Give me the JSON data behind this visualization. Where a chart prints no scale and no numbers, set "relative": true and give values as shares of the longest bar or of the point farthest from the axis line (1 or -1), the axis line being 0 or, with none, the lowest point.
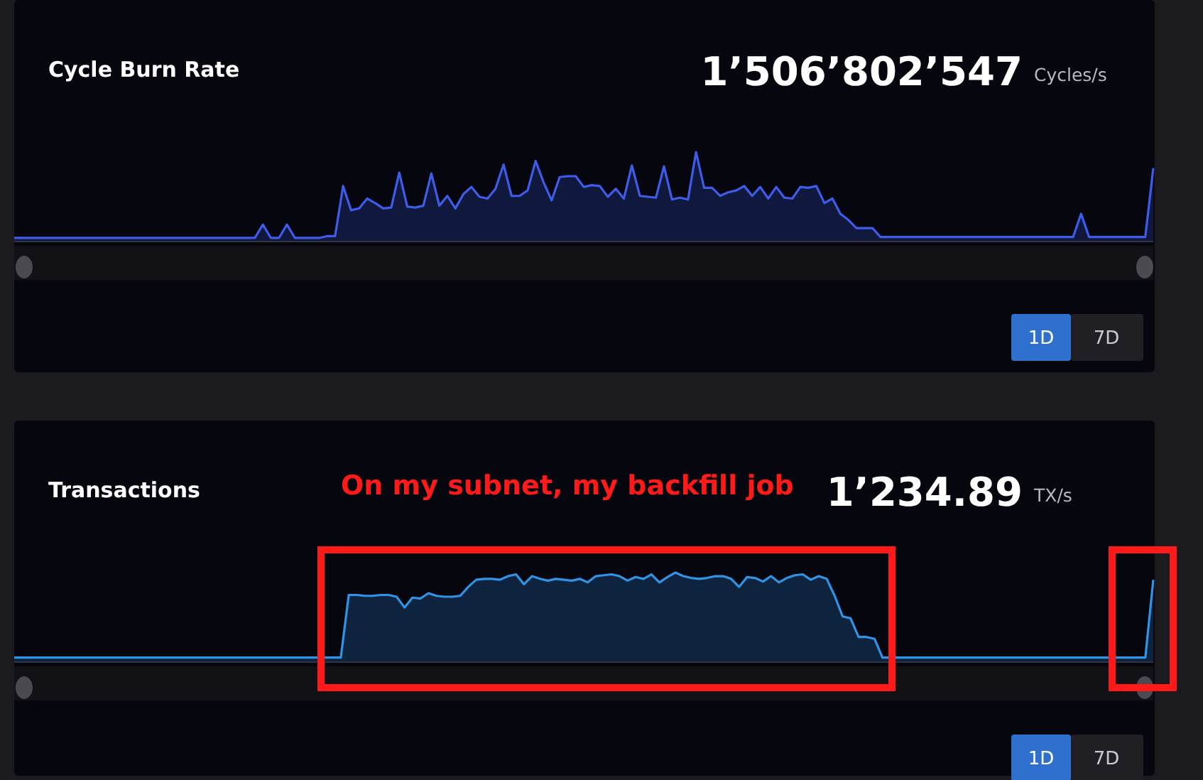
{
  "chart_data": [
    {
      "type": "area",
      "title": "Cycle Burn Rate",
      "relative": true,
      "annotations": [
        "1’506’802’547",
        "Cycles/s",
        "1D",
        "7D"
      ],
      "categories": [
        null,
        null,
        null,
        null,
        null,
        null,
        null,
        null,
        null,
        null,
        null,
        null,
        null,
        null,
        null,
        null,
        null,
        null,
        null,
        null,
        null,
        null,
        null,
        null,
        null,
        null,
        null,
        null,
        null,
        null,
        null,
        null,
        null,
        null,
        null,
        null,
        null,
        null,
        null,
        null,
        null,
        null,
        null,
        null,
        null,
        null,
        null,
        null,
        null,
        null,
        null,
        null,
        null,
        null,
        null,
        null,
        null,
        null,
        null,
        null,
        null,
        null,
        null,
        null,
        null,
        null,
        null,
        null,
        null,
        null,
        null,
        null,
        null,
        null,
        null,
        null,
        null,
        null,
        null,
        null,
        null,
        null,
        null,
        null,
        null,
        null,
        null,
        null,
        null,
        null,
        null,
        null,
        null,
        null,
        null,
        null,
        null,
        null,
        null,
        null,
        null,
        null,
        null,
        null,
        null,
        null,
        null,
        null,
        null,
        null,
        null,
        null,
        null,
        null,
        null,
        null,
        null,
        null,
        null,
        null,
        null,
        null,
        null,
        null,
        null,
        null,
        null,
        null,
        null,
        null,
        null,
        null,
        null,
        null,
        null,
        null,
        null,
        null,
        null,
        null,
        null,
        null,
        null
      ],
      "series": [
        {
          "color": "#3d5ce8",
          "values": [
            0.04,
            0.04,
            0.04,
            0.04,
            0.04,
            0.04,
            0.04,
            0.04,
            0.04,
            0.04,
            0.04,
            0.04,
            0.04,
            0.04,
            0.04,
            0.04,
            0.04,
            0.04,
            0.04,
            0.04,
            0.04,
            0.04,
            0.04,
            0.04,
            0.04,
            0.04,
            0.04,
            0.04,
            0.04,
            0.04,
            0.04,
            0.19,
            0.04,
            0.04,
            0.19,
            0.04,
            0.04,
            0.04,
            0.04,
            0.06,
            0.06,
            0.62,
            0.35,
            0.37,
            0.48,
            0.43,
            0.37,
            0.38,
            0.77,
            0.39,
            0.38,
            0.4,
            0.76,
            0.4,
            0.51,
            0.37,
            0.53,
            0.61,
            0.5,
            0.48,
            0.59,
            0.86,
            0.51,
            0.51,
            0.57,
            0.9,
            0.66,
            0.46,
            0.72,
            0.73,
            0.73,
            0.61,
            0.63,
            0.62,
            0.5,
            0.59,
            0.48,
            0.85,
            0.51,
            0.5,
            0.49,
            0.84,
            0.47,
            0.49,
            0.47,
            1.0,
            0.6,
            0.6,
            0.51,
            0.55,
            0.57,
            0.62,
            0.51,
            0.61,
            0.48,
            0.61,
            0.49,
            0.48,
            0.61,
            0.6,
            0.62,
            0.43,
            0.48,
            0.31,
            0.24,
            0.15,
            0.15,
            0.15,
            0.05,
            0.05,
            0.05,
            0.05,
            0.05,
            0.05,
            0.05,
            0.05,
            0.05,
            0.05,
            0.05,
            0.05,
            0.05,
            0.05,
            0.05,
            0.05,
            0.05,
            0.05,
            0.05,
            0.05,
            0.05,
            0.05,
            0.05,
            0.05,
            0.05,
            0.31,
            0.05,
            0.05,
            0.05,
            0.05,
            0.05,
            0.05,
            0.05,
            0.05,
            0.82
          ]
        }
      ]
    },
    {
      "type": "area",
      "title": "Transactions",
      "relative": true,
      "annotations": [
        "1’234.89",
        "TX/s",
        "1D",
        "7D",
        "On my subnet, my backfill job"
      ],
      "categories": [
        null,
        null,
        null,
        null,
        null,
        null,
        null,
        null,
        null,
        null,
        null,
        null,
        null,
        null,
        null,
        null,
        null,
        null,
        null,
        null,
        null,
        null,
        null,
        null,
        null,
        null,
        null,
        null,
        null,
        null,
        null,
        null,
        null,
        null,
        null,
        null,
        null,
        null,
        null,
        null,
        null,
        null,
        null,
        null,
        null,
        null,
        null,
        null,
        null,
        null,
        null,
        null,
        null,
        null,
        null,
        null,
        null,
        null,
        null,
        null,
        null,
        null,
        null,
        null,
        null,
        null,
        null,
        null,
        null,
        null,
        null,
        null,
        null,
        null,
        null,
        null,
        null,
        null,
        null,
        null,
        null,
        null,
        null,
        null,
        null,
        null,
        null,
        null,
        null,
        null,
        null,
        null,
        null,
        null,
        null,
        null,
        null,
        null,
        null,
        null,
        null,
        null,
        null,
        null,
        null,
        null,
        null,
        null,
        null,
        null,
        null,
        null,
        null,
        null,
        null,
        null,
        null,
        null,
        null,
        null,
        null,
        null,
        null,
        null,
        null,
        null,
        null,
        null,
        null,
        null,
        null,
        null,
        null,
        null,
        null,
        null,
        null,
        null,
        null,
        null,
        null,
        null,
        null,
        null
      ],
      "series": [
        {
          "color": "#2f93e6",
          "values": [
            0.05,
            0.05,
            0.05,
            0.05,
            0.05,
            0.05,
            0.05,
            0.05,
            0.05,
            0.05,
            0.05,
            0.05,
            0.05,
            0.05,
            0.05,
            0.05,
            0.05,
            0.05,
            0.05,
            0.05,
            0.05,
            0.05,
            0.05,
            0.05,
            0.05,
            0.05,
            0.05,
            0.05,
            0.05,
            0.05,
            0.05,
            0.05,
            0.05,
            0.05,
            0.05,
            0.05,
            0.05,
            0.05,
            0.05,
            0.05,
            0.05,
            0.05,
            0.75,
            0.75,
            0.74,
            0.74,
            0.75,
            0.75,
            0.73,
            0.61,
            0.72,
            0.71,
            0.77,
            0.74,
            0.73,
            0.73,
            0.74,
            0.84,
            0.92,
            0.93,
            0.93,
            0.92,
            0.96,
            0.98,
            0.87,
            0.96,
            0.93,
            0.91,
            0.93,
            0.92,
            0.91,
            0.93,
            0.89,
            0.96,
            0.97,
            0.98,
            0.96,
            0.91,
            0.95,
            0.93,
            0.98,
            0.89,
            0.95,
            1.0,
            0.96,
            0.94,
            0.93,
            0.94,
            0.96,
            0.96,
            0.93,
            0.84,
            0.95,
            0.94,
            0.9,
            0.96,
            0.89,
            0.94,
            0.97,
            0.98,
            0.92,
            0.96,
            0.93,
            0.74,
            0.51,
            0.49,
            0.28,
            0.28,
            0.26,
            0.05,
            0.05,
            0.05,
            0.05,
            0.05,
            0.05,
            0.05,
            0.05,
            0.05,
            0.05,
            0.05,
            0.05,
            0.05,
            0.05,
            0.05,
            0.05,
            0.05,
            0.05,
            0.05,
            0.05,
            0.05,
            0.05,
            0.05,
            0.05,
            0.05,
            0.05,
            0.05,
            0.05,
            0.05,
            0.05,
            0.05,
            0.05,
            0.05,
            0.05,
            0.92
          ]
        }
      ]
    }
  ]
}
